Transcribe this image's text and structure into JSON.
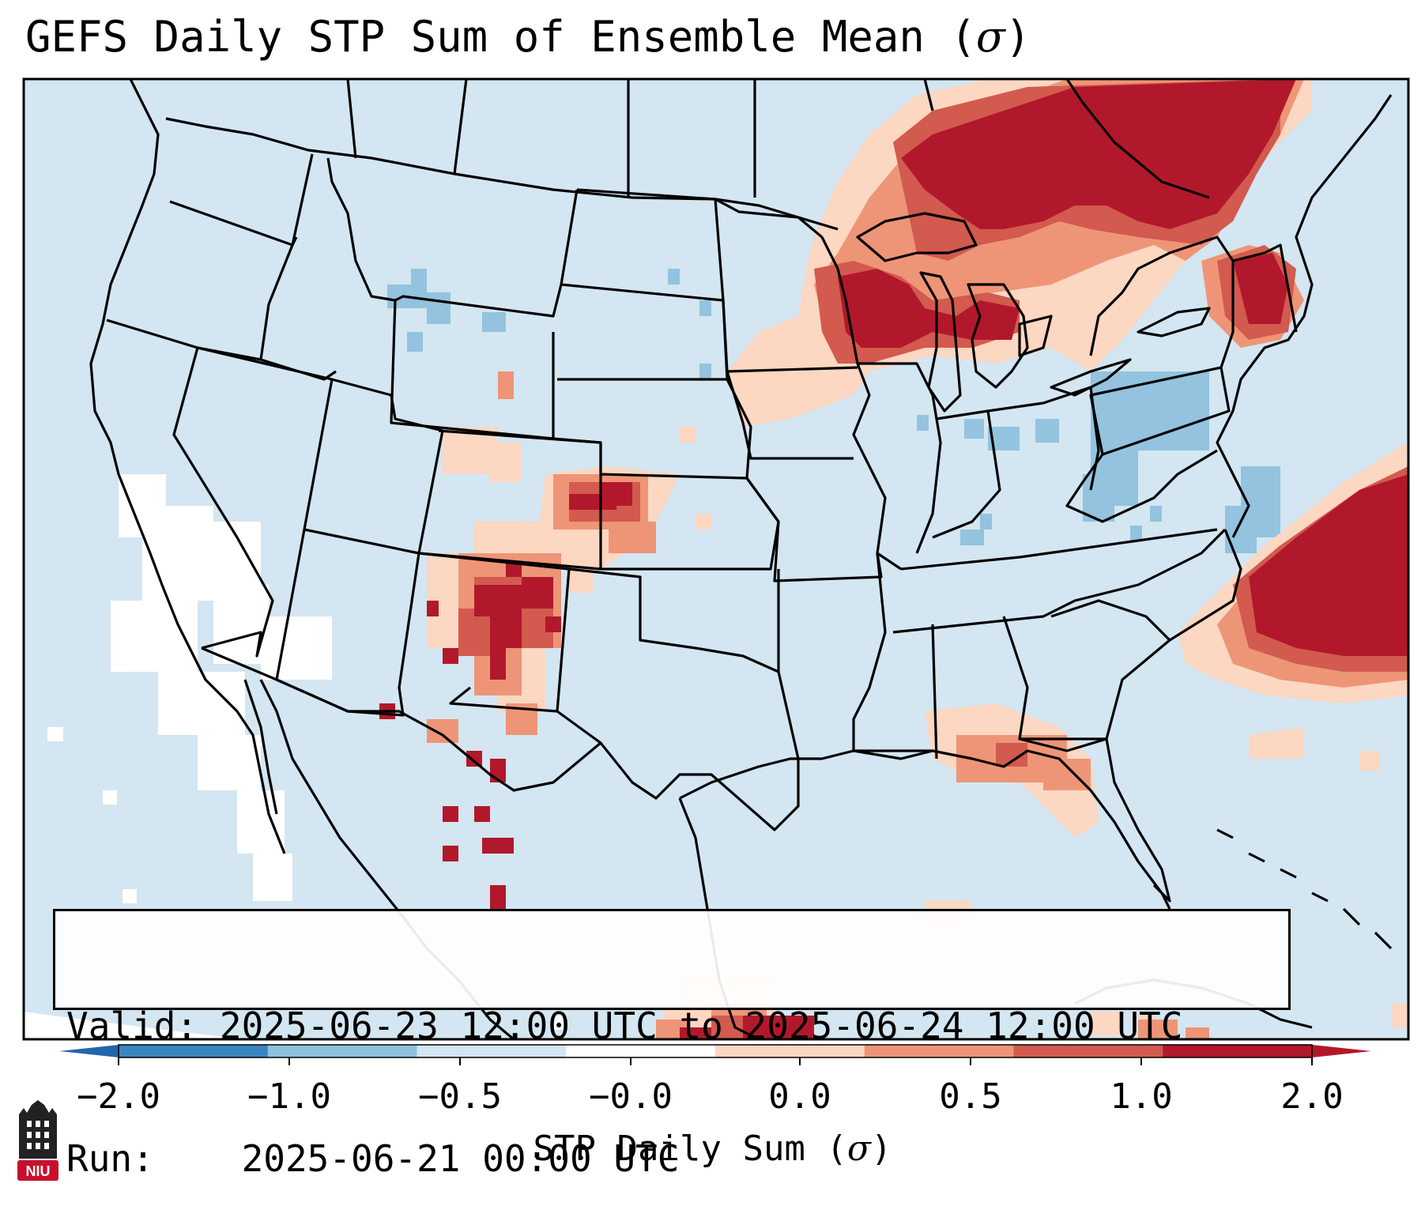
{
  "title_text": "GEFS Daily STP Sum of Ensemble Mean (",
  "title_symbol": "σ",
  "title_close": ")",
  "legend": {
    "valid_label": "Valid:",
    "valid_value": "2025-06-23 12:00 UTC to 2025-06-24 12:00 UTC",
    "run_label": "Run:",
    "run_value": "2025-06-21 00:00 UTC"
  },
  "colorbar": {
    "label_text": "STP Daily Sum (",
    "label_symbol": "σ",
    "label_close": ")",
    "ticks": [
      "−2.0",
      "−1.0",
      "−0.5",
      "−0.0",
      "0.0",
      "0.5",
      "1.0",
      "2.0"
    ],
    "colors": [
      "#3a86c0",
      "#8fc1de",
      "#d3e6f1",
      "#ffffff",
      "#fcd7c2",
      "#ee9577",
      "#d25a4e",
      "#b2182b"
    ],
    "extend_low_color": "#2166ac",
    "extend_high_color": "#b2182b"
  },
  "logo": {
    "text": "NIU",
    "color": "#c8102e"
  },
  "map_colors": {
    "ocean": "#d3e6f1",
    "land": "#d3e6f1",
    "border": "#000000"
  }
}
